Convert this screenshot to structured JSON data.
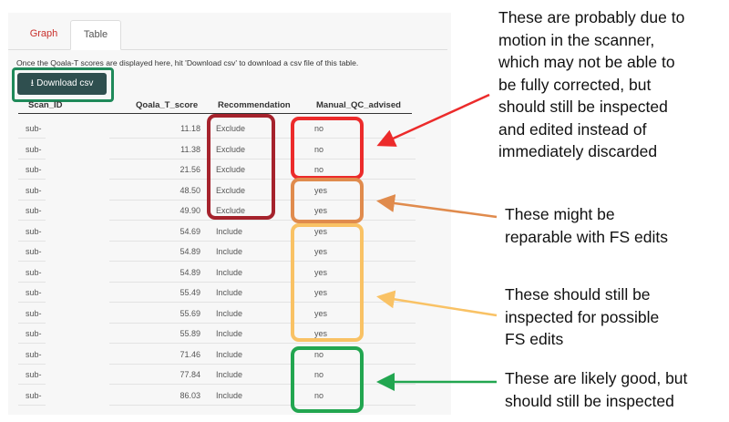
{
  "tabs": [
    {
      "label": "Graph",
      "active": false
    },
    {
      "label": "Table",
      "active": true
    }
  ],
  "description": "Once the Qoala-T scores are displayed here, hit 'Download csv' to download a csv file of this table.",
  "download_button": {
    "icon": "download-icon",
    "label": "Download csv"
  },
  "table": {
    "columns": [
      "Scan_ID",
      "Qoala_T_score",
      "Recommendation",
      "Manual_QC_advised"
    ],
    "rows": [
      {
        "id": "sub-",
        "score": "11.18",
        "rec": "Exclude",
        "qc": "no"
      },
      {
        "id": "sub-",
        "score": "11.38",
        "rec": "Exclude",
        "qc": "no"
      },
      {
        "id": "sub-",
        "score": "21.56",
        "rec": "Exclude",
        "qc": "no"
      },
      {
        "id": "sub-",
        "score": "48.50",
        "rec": "Exclude",
        "qc": "yes"
      },
      {
        "id": "sub-",
        "score": "49.90",
        "rec": "Exclude",
        "qc": "yes"
      },
      {
        "id": "sub-",
        "score": "54.69",
        "rec": "Include",
        "qc": "yes"
      },
      {
        "id": "sub-",
        "score": "54.89",
        "rec": "Include",
        "qc": "yes"
      },
      {
        "id": "sub-",
        "score": "54.89",
        "rec": "Include",
        "qc": "yes"
      },
      {
        "id": "sub-",
        "score": "55.49",
        "rec": "Include",
        "qc": "yes"
      },
      {
        "id": "sub-",
        "score": "55.69",
        "rec": "Include",
        "qc": "yes"
      },
      {
        "id": "sub-",
        "score": "55.89",
        "rec": "Include",
        "qc": "yes"
      },
      {
        "id": "sub-",
        "score": "71.46",
        "rec": "Include",
        "qc": "no"
      },
      {
        "id": "sub-",
        "score": "77.84",
        "rec": "Include",
        "qc": "no"
      },
      {
        "id": "sub-",
        "score": "86.03",
        "rec": "Include",
        "qc": "no"
      }
    ]
  },
  "annotations": [
    {
      "lines": [
        "These are probably due to",
        "motion in the scanner,",
        "which may not be able to",
        "be fully corrected, but",
        "should still be inspected",
        "and edited instead of",
        "immediately discarded"
      ],
      "color": "#ec2b2b"
    },
    {
      "lines": [
        "These might be",
        "reparable with FS edits"
      ],
      "color": "#e08b4d"
    },
    {
      "lines": [
        "These should still be",
        "inspected for possible",
        "FS edits"
      ],
      "color": "#f9c265"
    },
    {
      "lines": [
        "These are likely good, but",
        "should still be inspected"
      ],
      "color": "#22a650"
    }
  ],
  "colors": {
    "exclude_box": "#a5222c",
    "download_highlight": "#1f8a5a",
    "tab_active_text": "#c9302c"
  }
}
